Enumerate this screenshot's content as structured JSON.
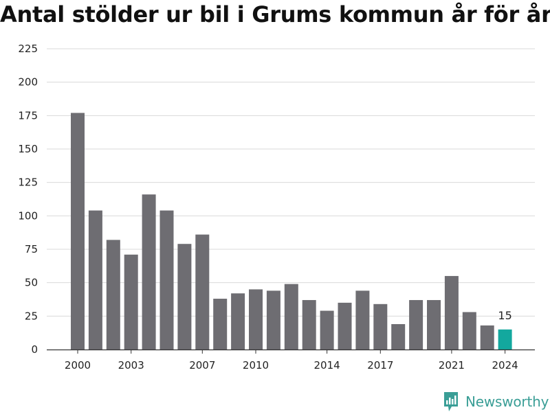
{
  "chart_data": {
    "type": "bar",
    "title": "Antal stölder ur bil i Grums kommun år för år",
    "categories": [
      "2000",
      "2001",
      "2002",
      "2003",
      "2004",
      "2005",
      "2006",
      "2007",
      "2008",
      "2009",
      "2010",
      "2011",
      "2012",
      "2013",
      "2014",
      "2015",
      "2016",
      "2017",
      "2018",
      "2019",
      "2020",
      "2021",
      "2022",
      "2023",
      "2024"
    ],
    "values": [
      177,
      104,
      82,
      71,
      116,
      104,
      79,
      86,
      38,
      42,
      45,
      44,
      49,
      37,
      29,
      35,
      44,
      34,
      19,
      37,
      37,
      55,
      28,
      18,
      15
    ],
    "x_tick_labels": [
      "2000",
      "2003",
      "2007",
      "2010",
      "2014",
      "2017",
      "2021",
      "2024"
    ],
    "y_ticks": [
      "0",
      "25",
      "50",
      "75",
      "100",
      "125",
      "150",
      "175",
      "200",
      "225"
    ],
    "ylim": [
      0,
      225
    ],
    "grid": true,
    "bar_color": "#6e6d72",
    "highlight_color": "#13a89e",
    "highlight_index": 24,
    "highlight_label": "15"
  },
  "brand": {
    "name": "Newsworthy",
    "color": "#3a9e96"
  }
}
